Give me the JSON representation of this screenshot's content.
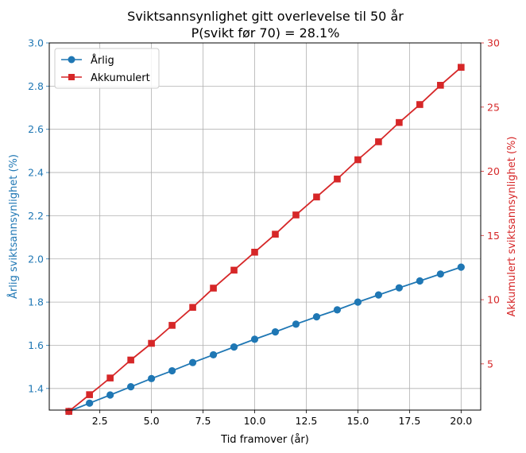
{
  "chart_data": {
    "type": "line",
    "title": "Sviktsannsynlighet gitt overlevelse til 50 år",
    "subtitle": "P(svikt før 70) = 28.1%",
    "xlabel": "Tid framover (år)",
    "ylabel_left": "Årlig sviktsannsynlighet (%)",
    "ylabel_right": "Akkumulert sviktsannsynlighet (%)",
    "xlim": [
      0.05,
      20.95
    ],
    "ylim_left": [
      1.3,
      3.0
    ],
    "ylim_right": [
      1.4,
      30
    ],
    "x_ticks": [
      2.5,
      5.0,
      7.5,
      10.0,
      12.5,
      15.0,
      17.5,
      20.0
    ],
    "x_tick_labels": [
      "2.5",
      "5.0",
      "7.5",
      "10.0",
      "12.5",
      "15.0",
      "17.5",
      "20.0"
    ],
    "y_left_ticks": [
      1.4,
      1.6,
      1.8,
      2.0,
      2.2,
      2.4,
      2.6,
      2.8,
      3.0
    ],
    "y_left_tick_labels": [
      "1.4",
      "1.6",
      "1.8",
      "2.0",
      "2.2",
      "2.4",
      "2.6",
      "2.8",
      "3.0"
    ],
    "y_right_ticks": [
      5,
      10,
      15,
      20,
      25,
      30
    ],
    "y_right_tick_labels": [
      "5",
      "10",
      "15",
      "20",
      "25",
      "30"
    ],
    "grid": true,
    "legend_position": "top-left",
    "x": [
      1,
      2,
      3,
      4,
      5,
      6,
      7,
      8,
      9,
      10,
      11,
      12,
      13,
      14,
      15,
      16,
      17,
      18,
      19,
      20
    ],
    "series": [
      {
        "name": "Årlig",
        "axis": "left",
        "color": "#1f77b4",
        "marker": "circle",
        "values": [
          1.294,
          1.332,
          1.37,
          1.408,
          1.446,
          1.482,
          1.52,
          1.556,
          1.592,
          1.628,
          1.662,
          1.698,
          1.732,
          1.764,
          1.8,
          1.833,
          1.866,
          1.898,
          1.93,
          1.962
        ]
      },
      {
        "name": "Akkumulert",
        "axis": "right",
        "color": "#d62728",
        "marker": "square",
        "values": [
          1.3,
          2.6,
          3.9,
          5.3,
          6.6,
          8.0,
          9.4,
          10.9,
          12.3,
          13.7,
          15.1,
          16.6,
          18.0,
          19.4,
          20.9,
          22.3,
          23.8,
          25.2,
          26.7,
          28.1
        ]
      }
    ]
  }
}
